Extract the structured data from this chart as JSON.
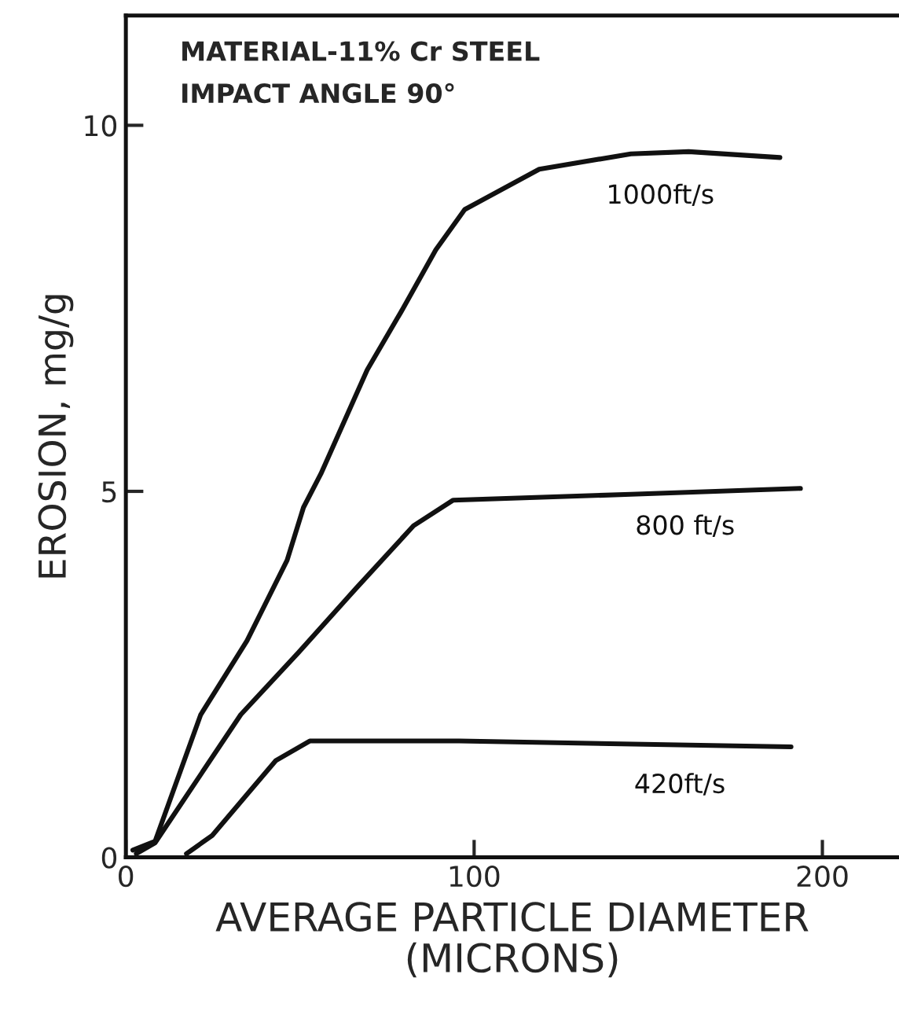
{
  "chart_data": {
    "type": "line",
    "xlabel": "AVERAGE PARTICLE DIAMETER\n(MICRONS)",
    "ylabel": "EROSION, mg/g",
    "annotations": [
      "MATERIAL-11% Cr STEEL",
      "IMPACT ANGLE 90°"
    ],
    "xlim": [
      0,
      222
    ],
    "ylim": [
      0,
      11.5
    ],
    "xticks": [
      0,
      100,
      200
    ],
    "yticks": [
      0,
      5,
      10
    ],
    "grid": false,
    "legend": false,
    "marker": "none",
    "line_style": "solid",
    "series": [
      {
        "name": "1000ft/s",
        "color": "#111111",
        "x": [
          2,
          8.4,
          21.5,
          34.8,
          46.3,
          51,
          56,
          69.3,
          79,
          89,
          97.3,
          118.7,
          145,
          161.6,
          187.8
        ],
        "values": [
          0.1,
          0.22,
          1.95,
          2.96,
          4.06,
          4.78,
          5.24,
          6.66,
          7.45,
          8.3,
          8.85,
          9.4,
          9.61,
          9.64,
          9.56
        ]
      },
      {
        "name": "800 ft/s",
        "color": "#111111",
        "x": [
          3,
          8.4,
          33,
          49.6,
          66,
          82.6,
          94,
          145,
          193.7
        ],
        "values": [
          0.05,
          0.2,
          1.95,
          2.8,
          3.67,
          4.53,
          4.88,
          4.96,
          5.04
        ]
      },
      {
        "name": "420ft/s",
        "color": "#111111",
        "x": [
          17.4,
          24.8,
          34.8,
          43,
          52.8,
          95.7,
          191
        ],
        "values": [
          0.05,
          0.3,
          0.86,
          1.32,
          1.59,
          1.59,
          1.51
        ]
      }
    ]
  }
}
